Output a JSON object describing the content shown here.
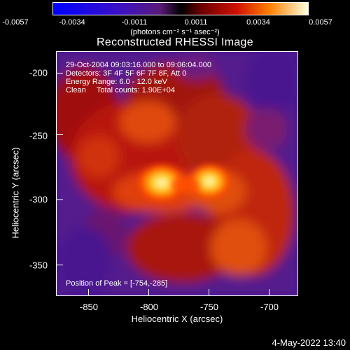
{
  "colorbar": {
    "ticks": [
      "-0.0057",
      "-0.0034",
      "-0.0011",
      "0.0011",
      "0.0034",
      "0.0057"
    ],
    "units": "(photons cm⁻² s⁻¹ asec⁻²)"
  },
  "title": "Reconstructed RHESSI Image",
  "info": {
    "line1": "29-Oct-2004 09:03:16.000 to 09:06:04.000",
    "line2": "Detectors: 3F 4F 5F 6F 7F 8F, Att 0",
    "line3": "Energy Range: 6.0 - 12.0 keV",
    "line4": "Clean     Total counts: 1.90E+04",
    "peak": "Position of Peak = [-754,-285]"
  },
  "axes": {
    "xlabel": "Heliocentric X (arcsec)",
    "ylabel": "Heliocentric Y (arcsec)",
    "xticks": [
      "-850",
      "-800",
      "-750",
      "-700"
    ],
    "yticks": [
      "-200",
      "-250",
      "-300",
      "-350"
    ]
  },
  "datestamp": "4-May-2022 13:40"
}
